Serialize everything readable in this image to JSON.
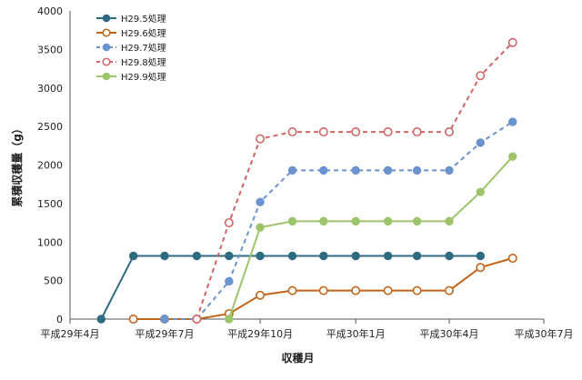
{
  "chart_data": {
    "type": "line",
    "title": "",
    "xlabel": "収穫月",
    "ylabel": "累積収穫量（g）",
    "ylim": [
      0,
      4000
    ],
    "yticks": [
      0,
      500,
      1000,
      1500,
      2000,
      2500,
      3000,
      3500,
      4000
    ],
    "x_tick_labels": [
      "平成29年4月",
      "平成29年7月",
      "平成29年10月",
      "平成30年1月",
      "平成30年4月",
      "平成30年7月"
    ],
    "legend_position": "top-left",
    "grid": false,
    "series": [
      {
        "name": "H29.5処理",
        "color": "#2e6b80",
        "dash": "solid",
        "marker": "filled-circle",
        "points": [
          {
            "x": "2017-05-01",
            "y": 0
          },
          {
            "x": "2017-06-01",
            "y": 820
          },
          {
            "x": "2017-07-01",
            "y": 820
          },
          {
            "x": "2017-08-01",
            "y": 820
          },
          {
            "x": "2017-09-01",
            "y": 820
          },
          {
            "x": "2017-10-01",
            "y": 820
          },
          {
            "x": "2017-11-01",
            "y": 820
          },
          {
            "x": "2017-12-01",
            "y": 820
          },
          {
            "x": "2018-01-01",
            "y": 820
          },
          {
            "x": "2018-02-01",
            "y": 820
          },
          {
            "x": "2018-03-01",
            "y": 820
          },
          {
            "x": "2018-04-01",
            "y": 820
          },
          {
            "x": "2018-05-01",
            "y": 820
          }
        ]
      },
      {
        "name": "H29.6処理",
        "color": "#c0651a",
        "dash": "solid",
        "marker": "open-circle",
        "points": [
          {
            "x": "2017-06-01",
            "y": 0
          },
          {
            "x": "2017-07-01",
            "y": 0
          },
          {
            "x": "2017-08-01",
            "y": 0
          },
          {
            "x": "2017-09-01",
            "y": 70
          },
          {
            "x": "2017-10-01",
            "y": 310
          },
          {
            "x": "2017-11-01",
            "y": 370
          },
          {
            "x": "2017-12-01",
            "y": 370
          },
          {
            "x": "2018-01-01",
            "y": 370
          },
          {
            "x": "2018-02-01",
            "y": 370
          },
          {
            "x": "2018-03-01",
            "y": 370
          },
          {
            "x": "2018-04-01",
            "y": 370
          },
          {
            "x": "2018-05-01",
            "y": 670
          },
          {
            "x": "2018-06-01",
            "y": 790
          }
        ]
      },
      {
        "name": "H29.7処理",
        "color": "#6b93cf",
        "dash": "dashed",
        "marker": "filled-circle",
        "points": [
          {
            "x": "2017-07-01",
            "y": 0
          },
          {
            "x": "2017-08-01",
            "y": 0
          },
          {
            "x": "2017-09-01",
            "y": 490
          },
          {
            "x": "2017-10-01",
            "y": 1520
          },
          {
            "x": "2017-11-01",
            "y": 1930
          },
          {
            "x": "2017-12-01",
            "y": 1930
          },
          {
            "x": "2018-01-01",
            "y": 1930
          },
          {
            "x": "2018-02-01",
            "y": 1930
          },
          {
            "x": "2018-03-01",
            "y": 1930
          },
          {
            "x": "2018-04-01",
            "y": 1930
          },
          {
            "x": "2018-05-01",
            "y": 2290
          },
          {
            "x": "2018-06-01",
            "y": 2560
          }
        ]
      },
      {
        "name": "H29.8処理",
        "color": "#d06666",
        "dash": "dashed",
        "marker": "open-circle",
        "points": [
          {
            "x": "2017-08-01",
            "y": 0
          },
          {
            "x": "2017-09-01",
            "y": 1250
          },
          {
            "x": "2017-10-01",
            "y": 2340
          },
          {
            "x": "2017-11-01",
            "y": 2430
          },
          {
            "x": "2017-12-01",
            "y": 2430
          },
          {
            "x": "2018-01-01",
            "y": 2430
          },
          {
            "x": "2018-02-01",
            "y": 2430
          },
          {
            "x": "2018-03-01",
            "y": 2430
          },
          {
            "x": "2018-04-01",
            "y": 2430
          },
          {
            "x": "2018-05-01",
            "y": 3160
          },
          {
            "x": "2018-06-01",
            "y": 3590
          }
        ]
      },
      {
        "name": "H29.9処理",
        "color": "#9dc46b",
        "dash": "solid",
        "marker": "filled-circle",
        "points": [
          {
            "x": "2017-09-01",
            "y": 0
          },
          {
            "x": "2017-10-01",
            "y": 1190
          },
          {
            "x": "2017-11-01",
            "y": 1270
          },
          {
            "x": "2017-12-01",
            "y": 1270
          },
          {
            "x": "2018-01-01",
            "y": 1270
          },
          {
            "x": "2018-02-01",
            "y": 1270
          },
          {
            "x": "2018-03-01",
            "y": 1270
          },
          {
            "x": "2018-04-01",
            "y": 1270
          },
          {
            "x": "2018-05-01",
            "y": 1650
          },
          {
            "x": "2018-06-01",
            "y": 2110
          }
        ]
      }
    ]
  }
}
